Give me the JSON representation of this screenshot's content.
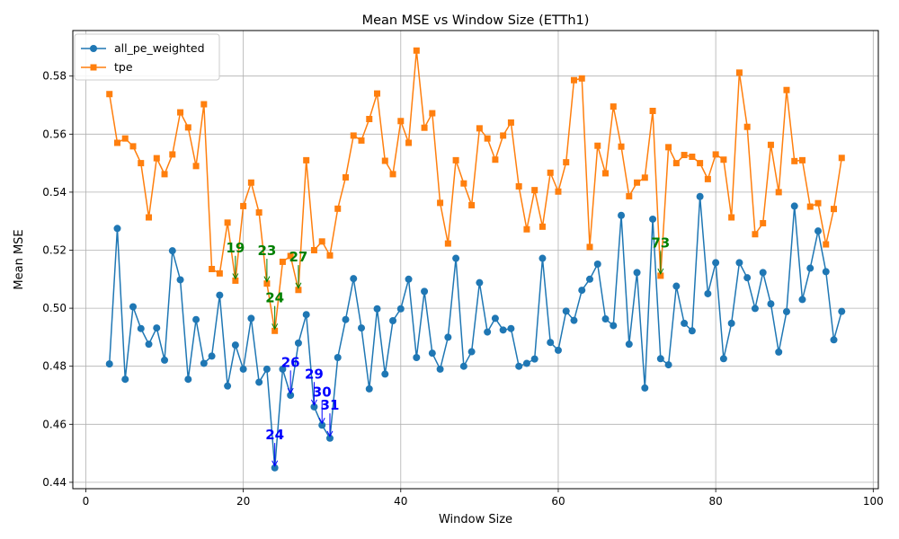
{
  "chart_data": {
    "type": "line",
    "title": "Mean MSE vs Window Size (ETTh1)",
    "xlabel": "Window Size",
    "ylabel": "Mean MSE",
    "xlim": [
      -1.65,
      100.65
    ],
    "ylim": [
      0.4378,
      0.5957
    ],
    "xticks": [
      0,
      20,
      40,
      60,
      80,
      100
    ],
    "xtick_labels": [
      "0",
      "20",
      "40",
      "60",
      "80",
      "100"
    ],
    "yticks": [
      0.44,
      0.46,
      0.48,
      0.5,
      0.52,
      0.54,
      0.56,
      0.58
    ],
    "ytick_labels": [
      "0.44",
      "0.46",
      "0.48",
      "0.50",
      "0.52",
      "0.54",
      "0.56",
      "0.58"
    ],
    "grid": true,
    "legend_position": "upper-left",
    "x": [
      3,
      4,
      5,
      6,
      7,
      8,
      9,
      10,
      11,
      12,
      13,
      14,
      15,
      16,
      17,
      18,
      19,
      20,
      21,
      22,
      23,
      24,
      25,
      26,
      27,
      28,
      29,
      30,
      31,
      32,
      33,
      34,
      35,
      36,
      37,
      38,
      39,
      40,
      41,
      42,
      43,
      44,
      45,
      46,
      47,
      48,
      49,
      50,
      51,
      52,
      53,
      54,
      55,
      56,
      57,
      58,
      59,
      60,
      61,
      62,
      63,
      64,
      65,
      66,
      67,
      68,
      69,
      70,
      71,
      72,
      73,
      74,
      75,
      76,
      77,
      78,
      79,
      80,
      81,
      82,
      83,
      84,
      85,
      86,
      87,
      88,
      89,
      90,
      91,
      92,
      93,
      94,
      95,
      96
    ],
    "series": [
      {
        "name": "all_pe_weighted",
        "color": "#1f77b4",
        "marker": "circle",
        "values": [
          0.4808,
          0.5275,
          0.4755,
          0.5005,
          0.493,
          0.4876,
          0.4932,
          0.4821,
          0.5198,
          0.5098,
          0.4755,
          0.4961,
          0.481,
          0.4835,
          0.5045,
          0.4732,
          0.4873,
          0.479,
          0.4965,
          0.4745,
          0.479,
          0.445,
          0.479,
          0.47,
          0.488,
          0.4978,
          0.466,
          0.4597,
          0.4552,
          0.483,
          0.4961,
          0.5102,
          0.4932,
          0.4722,
          0.4998,
          0.4773,
          0.4957,
          0.4998,
          0.51,
          0.483,
          0.5058,
          0.4845,
          0.479,
          0.49,
          0.5172,
          0.48,
          0.485,
          0.5088,
          0.4918,
          0.4965,
          0.4925,
          0.493,
          0.48,
          0.481,
          0.4825,
          0.5172,
          0.4882,
          0.4855,
          0.499,
          0.4958,
          0.5062,
          0.51,
          0.5152,
          0.4963,
          0.494,
          0.532,
          0.4876,
          0.5123,
          0.4725,
          0.5307,
          0.4826,
          0.4805,
          0.5076,
          0.4948,
          0.4922,
          0.5385,
          0.505,
          0.5157,
          0.4826,
          0.4948,
          0.5157,
          0.5105,
          0.4999,
          0.5123,
          0.5015,
          0.4849,
          0.4988,
          0.5352,
          0.503,
          0.5138,
          0.5266,
          0.5126,
          0.4891,
          0.4989
        ]
      },
      {
        "name": "tpe",
        "color": "#ff7f0e",
        "marker": "square",
        "values": [
          0.5738,
          0.557,
          0.5585,
          0.5558,
          0.55,
          0.5313,
          0.5517,
          0.5462,
          0.553,
          0.5675,
          0.5623,
          0.549,
          0.5703,
          0.5135,
          0.512,
          0.5295,
          0.5095,
          0.5352,
          0.5433,
          0.533,
          0.5085,
          0.4922,
          0.516,
          0.518,
          0.5063,
          0.551,
          0.52,
          0.523,
          0.5182,
          0.5343,
          0.5451,
          0.5595,
          0.5578,
          0.5652,
          0.574,
          0.5508,
          0.5462,
          0.5645,
          0.557,
          0.5888,
          0.5622,
          0.5672,
          0.5363,
          0.5223,
          0.551,
          0.543,
          0.5355,
          0.562,
          0.5585,
          0.5512,
          0.5595,
          0.564,
          0.542,
          0.5272,
          0.5407,
          0.5281,
          0.5467,
          0.5402,
          0.5503,
          0.5786,
          0.5792,
          0.5211,
          0.556,
          0.5465,
          0.5695,
          0.5557,
          0.5386,
          0.5433,
          0.545,
          0.568,
          0.5112,
          0.5555,
          0.55,
          0.5528,
          0.5522,
          0.55,
          0.5445,
          0.553,
          0.5512,
          0.5313,
          0.5812,
          0.5625,
          0.5255,
          0.5293,
          0.5563,
          0.54,
          0.5752,
          0.5507,
          0.551,
          0.535,
          0.5362,
          0.522,
          0.5342,
          0.5518
        ]
      }
    ],
    "annotations": [
      {
        "text": "24",
        "x": 24,
        "y": 0.445,
        "tx": 24,
        "ty": 0.4548,
        "color": "#0000ff"
      },
      {
        "text": "26",
        "x": 26,
        "y": 0.47,
        "tx": 26,
        "ty": 0.4798,
        "color": "#0000ff"
      },
      {
        "text": "29",
        "x": 29,
        "y": 0.466,
        "tx": 29,
        "ty": 0.4758,
        "color": "#0000ff"
      },
      {
        "text": "30",
        "x": 30,
        "y": 0.4597,
        "tx": 30,
        "ty": 0.4695,
        "color": "#0000ff"
      },
      {
        "text": "31",
        "x": 31,
        "y": 0.4552,
        "tx": 31,
        "ty": 0.465,
        "color": "#0000ff"
      },
      {
        "text": "19",
        "x": 19,
        "y": 0.5095,
        "tx": 19,
        "ty": 0.5193,
        "color": "#008000"
      },
      {
        "text": "23",
        "x": 23,
        "y": 0.5085,
        "tx": 23,
        "ty": 0.5183,
        "color": "#008000"
      },
      {
        "text": "24",
        "x": 24,
        "y": 0.4922,
        "tx": 24,
        "ty": 0.502,
        "color": "#008000"
      },
      {
        "text": "27",
        "x": 27,
        "y": 0.5063,
        "tx": 27,
        "ty": 0.5161,
        "color": "#008000"
      },
      {
        "text": "73",
        "x": 73,
        "y": 0.5112,
        "tx": 73,
        "ty": 0.521,
        "color": "#008000"
      }
    ]
  }
}
